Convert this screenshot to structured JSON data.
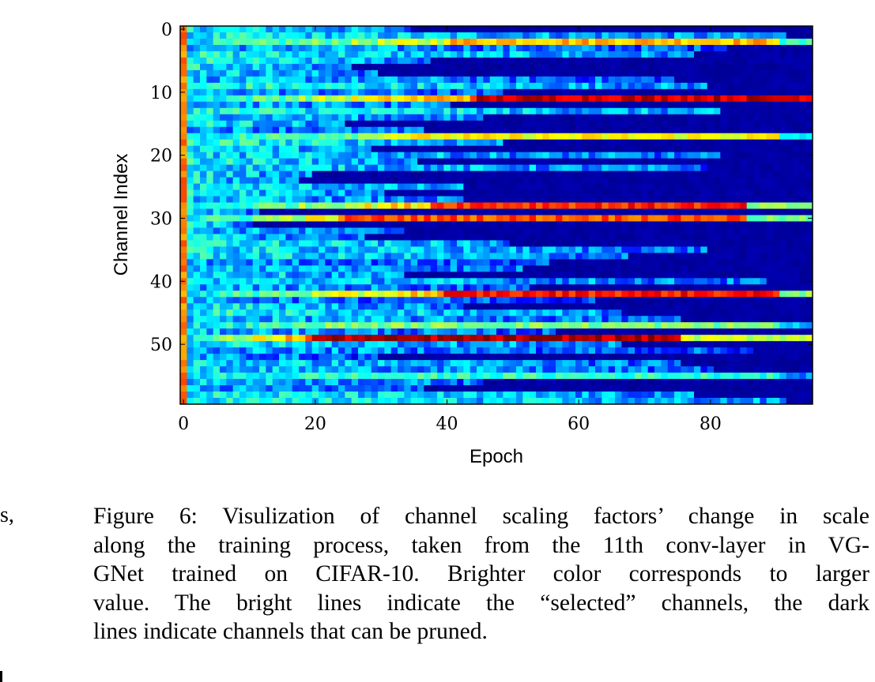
{
  "chart_data": {
    "type": "heatmap",
    "xlabel": "Epoch",
    "ylabel": "Channel Index",
    "x_ticks": [
      "0",
      "20",
      "40",
      "60",
      "80"
    ],
    "y_ticks": [
      "0",
      "10",
      "20",
      "30",
      "40",
      "50"
    ],
    "n_epochs": 96,
    "n_channels": 60,
    "xlim": [
      -0.5,
      95.5
    ],
    "ylim": [
      59.5,
      -0.5
    ],
    "colormap": "jet",
    "value_range": [
      0,
      1
    ],
    "selected_channels": [
      {
        "channel": 2,
        "peak": 0.7,
        "start": 40,
        "hold": 90
      },
      {
        "channel": 11,
        "peak": 0.93,
        "start": 45,
        "hold": 95
      },
      {
        "channel": 17,
        "peak": 0.62,
        "start": 30,
        "hold": 90
      },
      {
        "channel": 28,
        "peak": 0.84,
        "start": 38,
        "hold": 85
      },
      {
        "channel": 30,
        "peak": 0.8,
        "start": 25,
        "hold": 85
      },
      {
        "channel": 42,
        "peak": 0.86,
        "start": 40,
        "hold": 90
      },
      {
        "channel": 47,
        "peak": 0.5,
        "start": 20,
        "hold": 90
      },
      {
        "channel": 49,
        "peak": 0.95,
        "start": 20,
        "hold": 75
      },
      {
        "channel": 55,
        "peak": 0.42,
        "start": 20,
        "hold": 90
      }
    ],
    "pruned_decay_epoch_range": [
      10,
      92
    ],
    "initial_column_value": 0.75
  },
  "caption": {
    "lines": [
      "Figure 6: Visulization of channel scaling factors’ change in scale",
      "along the training process, taken from the 11th conv-layer in VG-",
      "GNet trained on CIFAR-10. Brighter color corresponds to larger",
      "value. The bright lines indicate the “selected” channels, the dark",
      "lines indicate channels that can be pruned."
    ]
  },
  "margin_fragment": "s,",
  "colors": {
    "background_low": "#00007f",
    "high": "#ff0000"
  }
}
